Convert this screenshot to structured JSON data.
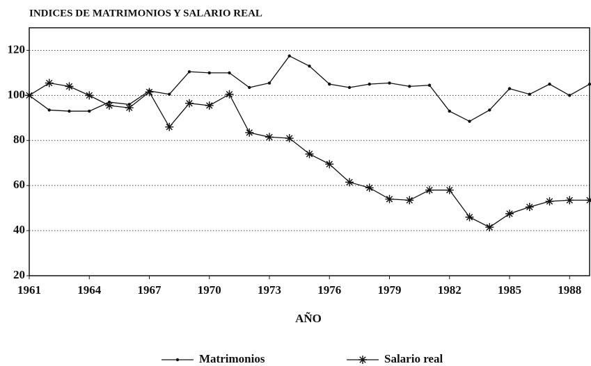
{
  "chart_data": {
    "type": "line",
    "title": "INDICES DE MATRIMONIOS Y SALARIO REAL",
    "x_label": "AÑO",
    "x": [
      1961,
      1962,
      1963,
      1964,
      1965,
      1966,
      1967,
      1968,
      1969,
      1970,
      1971,
      1972,
      1973,
      1974,
      1975,
      1976,
      1977,
      1978,
      1979,
      1980,
      1981,
      1982,
      1983,
      1984,
      1985,
      1986,
      1987,
      1988,
      1989
    ],
    "series": [
      {
        "name": "Matrimonios",
        "color": "#111111",
        "marker": "dot",
        "values": [
          100,
          93.5,
          93,
          93,
          97,
          96,
          102,
          100.5,
          110.5,
          110,
          110,
          103.5,
          105.5,
          117.5,
          113,
          105,
          103.5,
          105,
          105.5,
          104,
          104.5,
          93,
          88.5,
          93.5,
          103,
          100.5,
          105,
          100,
          105
        ]
      },
      {
        "name": "Salario real",
        "color": "#111111",
        "marker": "star",
        "values": [
          100,
          105.5,
          104,
          100,
          95.5,
          94.5,
          101.5,
          86,
          96.5,
          95.5,
          100.5,
          83.5,
          81.5,
          81,
          74,
          69.5,
          61.5,
          59,
          54,
          53.5,
          58,
          58,
          46,
          41.5,
          47.5,
          50.5,
          53,
          53.5,
          53.5
        ]
      }
    ],
    "xlim": [
      1961,
      1989
    ],
    "xticks": [
      1961,
      1964,
      1967,
      1970,
      1973,
      1976,
      1979,
      1982,
      1985,
      1988
    ],
    "ylim": [
      20,
      130
    ],
    "yticks": [
      20,
      40,
      60,
      80,
      100,
      120
    ],
    "grid": true,
    "legend": "bottom"
  }
}
